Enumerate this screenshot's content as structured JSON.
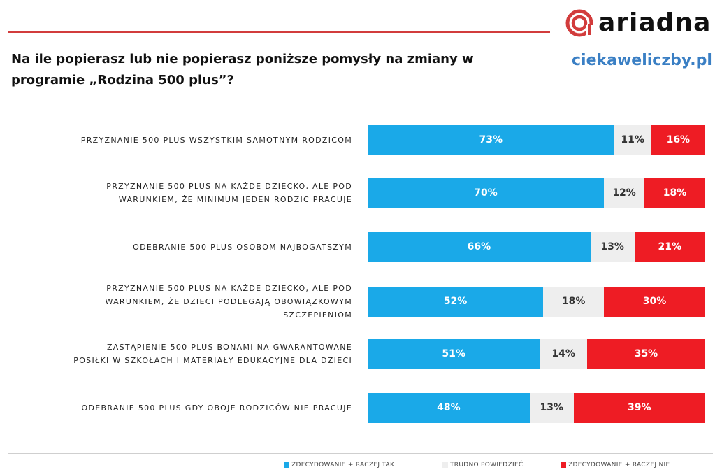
{
  "brand": {
    "logo_text": "ariadna",
    "logo_icon": "ariadna-logo-icon",
    "site": "ciekaweliczby.pl",
    "accent_color": "#d23c3c",
    "site_color": "#3a7fc4"
  },
  "chart_data": {
    "type": "bar",
    "orientation": "horizontal",
    "stacked": true,
    "normalized_percent": true,
    "title": "Na ile popierasz lub nie popierasz poniższe pomysły na zmiany w programie „Rodzina 500 plus”?",
    "categories": [
      "PRZYZNANIE 500 PLUS WSZYSTKIM SAMOTNYM RODZICOM",
      "PRZYZNANIE 500 PLUS NA KAŻDE DZIECKO, ALE POD WARUNKIEM, ŻE MINIMUM JEDEN RODZIC PRACUJE",
      "ODEBRANIE 500 PLUS OSOBOM NAJBOGATSZYM",
      "PRZYZNANIE 500 PLUS NA KAŻDE DZIECKO, ALE POD WARUNKIEM, ŻE DZIECI PODLEGAJĄ OBOWIĄZKOWYM SZCZEPIENIOM",
      "ZASTĄPIENIE 500 PLUS BONAMI NA GWARANTOWANE POSIŁKI W SZKOŁACH I MATERIAŁY EDUKACYJNE DLA DZIECI",
      "ODEBRANIE 500 PLUS GDY OBOJE RODZICÓW NIE PRACUJE"
    ],
    "category_lines": [
      [
        "PRZYZNANIE 500 PLUS WSZYSTKIM SAMOTNYM RODZICOM"
      ],
      [
        "PRZYZNANIE 500 PLUS NA KAŻDE DZIECKO, ALE POD",
        "WARUNKIEM, ŻE MINIMUM JEDEN RODZIC PRACUJE"
      ],
      [
        "ODEBRANIE 500 PLUS OSOBOM NAJBOGATSZYM"
      ],
      [
        "PRZYZNANIE 500 PLUS NA KAŻDE DZIECKO, ALE POD",
        "WARUNKIEM, ŻE DZIECI PODLEGAJĄ OBOWIĄZKOWYM",
        "SZCZEPIENIOM"
      ],
      [
        "ZASTĄPIENIE 500 PLUS BONAMI NA GWARANTOWANE",
        "POSIŁKI W SZKOŁACH I MATERIAŁY EDUKACYJNE DLA DZIECI"
      ],
      [
        "ODEBRANIE 500 PLUS  GDY  OBOJE RODZICÓW NIE PRACUJE"
      ]
    ],
    "series": [
      {
        "name": "ZDECYDOWANIE + RACZEJ TAK",
        "color": "#1aa9e8",
        "values": [
          73,
          70,
          66,
          52,
          51,
          48
        ]
      },
      {
        "name": "TRUDNO POWIEDZIEĆ",
        "color": "#eeeeee",
        "values": [
          11,
          12,
          13,
          18,
          14,
          13
        ]
      },
      {
        "name": "ZDECYDOWANIE + RACZEJ NIE",
        "color": "#ee1c24",
        "values": [
          16,
          18,
          21,
          30,
          35,
          39
        ]
      }
    ],
    "value_suffix": "%",
    "xlim": [
      0,
      100
    ],
    "legend_position": "bottom-right",
    "grid": false
  }
}
